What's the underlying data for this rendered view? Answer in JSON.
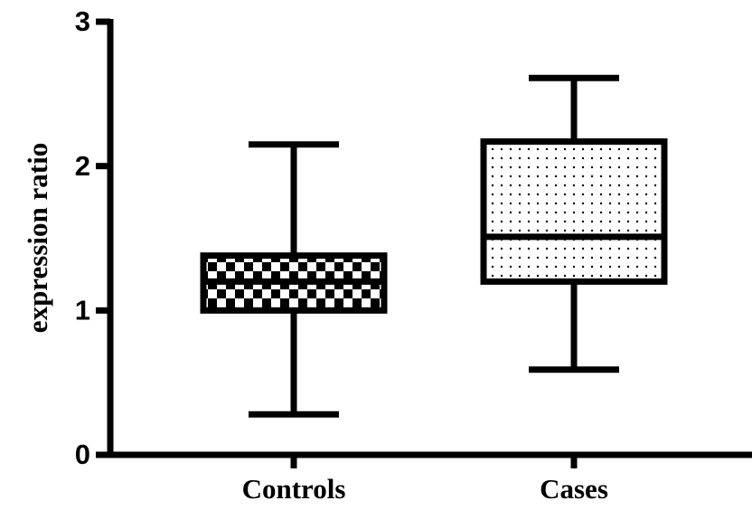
{
  "chart_data": {
    "type": "box",
    "ylabel": "expression ratio",
    "categories": [
      "Controls",
      "Cases"
    ],
    "min": [
      0.28,
      0.59
    ],
    "q1": [
      1.0,
      1.2
    ],
    "median": [
      1.2,
      1.51
    ],
    "q3": [
      1.38,
      2.17
    ],
    "max": [
      2.15,
      2.61
    ],
    "fill_patterns": [
      "checker",
      "dots"
    ],
    "color": "#000000",
    "ylim": [
      0,
      3
    ],
    "yticks": [
      0,
      1,
      2,
      3
    ],
    "grid": false
  }
}
